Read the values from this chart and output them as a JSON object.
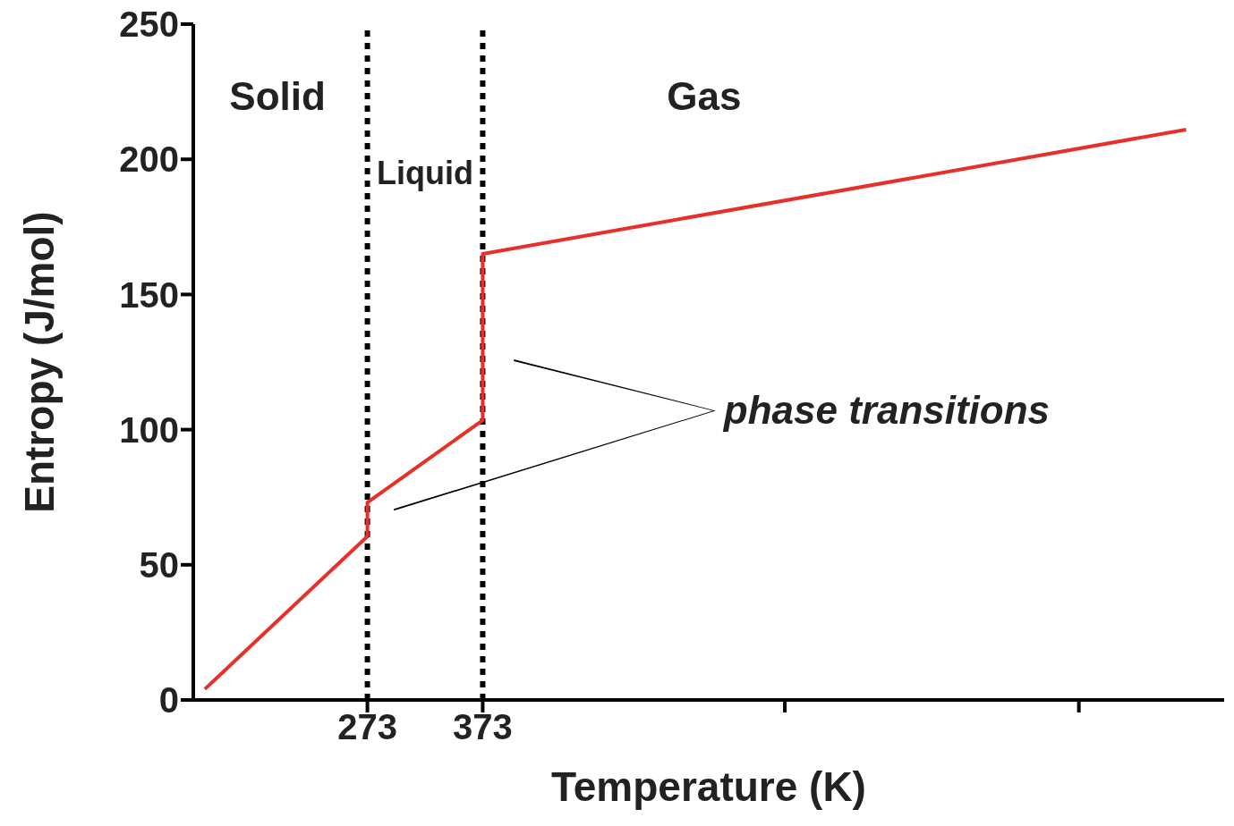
{
  "chart_data": {
    "type": "line",
    "xlabel": "Temperature (K)",
    "ylabel": "Entropy (J/mol)",
    "x": [
      132,
      273,
      273,
      373,
      373,
      983
    ],
    "series": [
      {
        "color": "#e8302a",
        "values": [
          4,
          60.5,
          73,
          103.5,
          165,
          211
        ]
      }
    ],
    "xlim": [
      122,
      1016
    ],
    "xticks": [
      273,
      373,
      {
        "value": 635,
        "label": null
      },
      {
        "value": 890,
        "label": null
      }
    ],
    "ylim": [
      0,
      250
    ],
    "yticks": [
      0,
      50,
      100,
      150,
      200,
      250
    ],
    "ref_lines": [
      {
        "axis": "x",
        "value": 273,
        "color": "#000000",
        "line_style": "dotted"
      },
      {
        "axis": "x",
        "value": 373,
        "color": "#000000",
        "line_style": "dotted"
      }
    ],
    "annotations": [
      "Solid",
      "Liquid",
      "Gas",
      "phase transitions"
    ],
    "grid": false,
    "legend": false,
    "marker": "none",
    "line_style": "solid"
  }
}
